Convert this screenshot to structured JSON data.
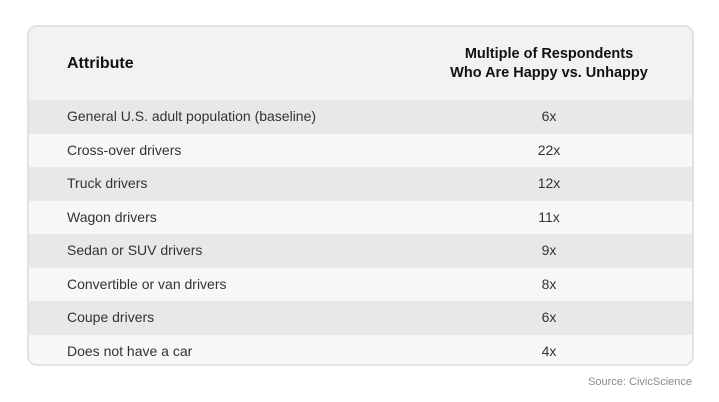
{
  "table": {
    "header": {
      "attribute": "Attribute",
      "multiple_line1": "Multiple of Respondents",
      "multiple_line2": "Who Are Happy vs. Unhappy"
    },
    "rows": [
      {
        "attribute": "General U.S. adult population (baseline)",
        "multiple": "6x"
      },
      {
        "attribute": "Cross-over drivers",
        "multiple": "22x"
      },
      {
        "attribute": "Truck drivers",
        "multiple": "12x"
      },
      {
        "attribute": "Wagon drivers",
        "multiple": "11x"
      },
      {
        "attribute": "Sedan or SUV drivers",
        "multiple": "9x"
      },
      {
        "attribute": "Convertible or van drivers",
        "multiple": "8x"
      },
      {
        "attribute": "Coupe drivers",
        "multiple": "6x"
      },
      {
        "attribute": "Does not have a car",
        "multiple": "4x"
      }
    ]
  },
  "source": "Source: CivicScience"
}
